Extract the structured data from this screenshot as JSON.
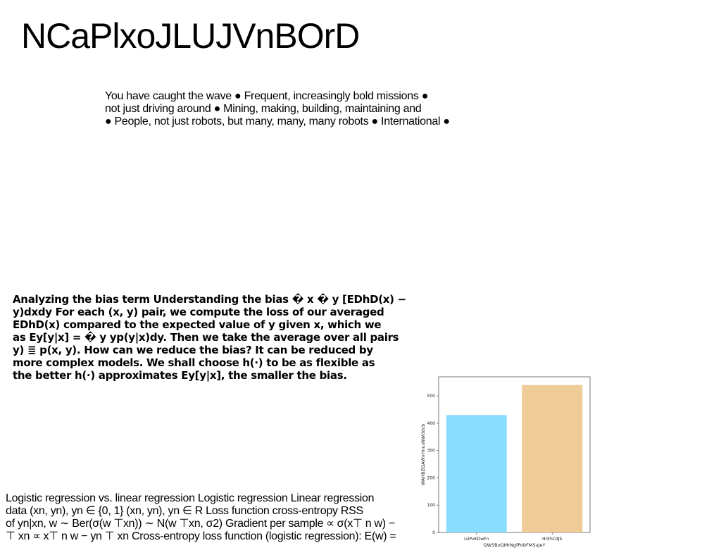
{
  "title": "NCaPlxoJLUJVnBOrD",
  "block_a": {
    "lines": [
      "You have caught the wave ● Frequent, increasingly bold missions ●",
      "not just driving around ● Mining, making, building, maintaining and",
      "● People, not just robots, but many, many, many robots ● International ●"
    ]
  },
  "block_b": {
    "lines": [
      "Analyzing the bias term Understanding the bias � x � y [EDhD(x) −",
      "y)dxdy For each (x, y) pair, we compute the loss of our averaged",
      "EDhD(x) compared to the expected value of y given x, which we",
      "as Ey[y|x] = � y yp(y|x)dy. Then we take the average over all pairs",
      "y) ≣ p(x, y). How can we reduce the bias? It can be reduced by",
      "more complex models. We shall choose h(·) to be as flexible as",
      "the better h(·) approximates Ey[y|x], the smaller the bias."
    ]
  },
  "block_c": {
    "lines": [
      "Logistic regression vs. linear regression Logistic regression Linear regression",
      "data (xn, yn), yn ∈ {0, 1} (xn, yn), yn ∈ R Loss function cross-entropy RSS",
      "of yn|xn, w ∼ Ber(σ(w ⊤xn)) ∼ N(w ⊤xn, σ2) Gradient per sample ∝ σ(x⊤ n w) −",
      "⊤ xn ∝ x⊤ n w − yn ⊤ xn Cross-entropy loss function (logistic regression): E(w) ="
    ]
  },
  "chart_data": {
    "type": "bar",
    "categories": [
      "LUPvKDwFn",
      "HrEhCdJS"
    ],
    "values": [
      430,
      540
    ],
    "colors": [
      "#89DDFF",
      "#EFCB98"
    ],
    "title": "",
    "xlabel": "QWSBoQMrNgfPobFMSuJeY",
    "ylabel": "WAHBZQAWvHnusNWddcb",
    "ylim": [
      0,
      570
    ],
    "yticks": [
      0,
      100,
      200,
      300,
      400,
      500
    ],
    "grid": false
  }
}
